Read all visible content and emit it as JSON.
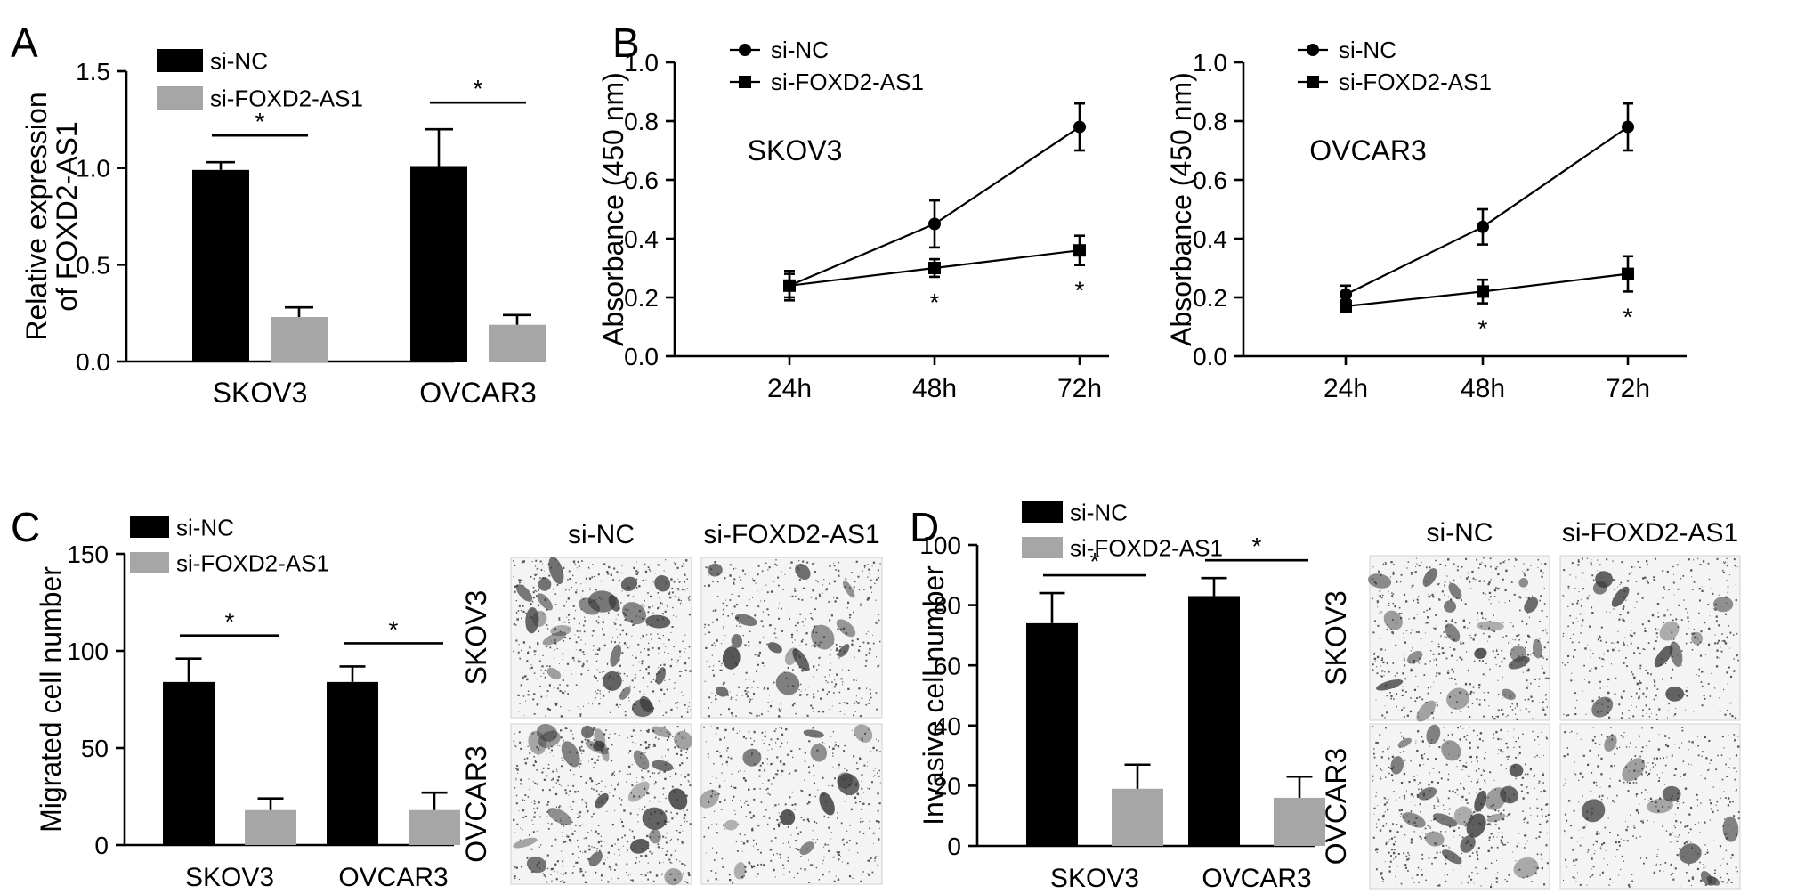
{
  "colors": {
    "si_nc": "#000000",
    "si_foxd2": "#a6a6a6",
    "axis": "#000000"
  },
  "chart_data": [
    {
      "panel": "A",
      "type": "bar",
      "categories": [
        "SKOV3",
        "OVCAR3"
      ],
      "series": [
        {
          "name": "si-NC",
          "values": [
            0.99,
            1.01
          ],
          "errors": [
            0.04,
            0.19
          ]
        },
        {
          "name": "si-FOXD2-AS1",
          "values": [
            0.23,
            0.19
          ],
          "errors": [
            0.05,
            0.05
          ]
        }
      ],
      "ylabel": [
        "Relative expression",
        "of FOXD2-AS1"
      ],
      "ylim": [
        0,
        1.5
      ],
      "yticks": [
        "0.0",
        "0.5",
        "1.0",
        "1.5"
      ],
      "significance": [
        "*",
        "*"
      ],
      "legend": "top-left"
    },
    {
      "panel": "B",
      "type": "line",
      "annotation": "SKOV3",
      "x": [
        "24h",
        "48h",
        "72h"
      ],
      "series": [
        {
          "name": "si-NC",
          "marker": "circle",
          "values": [
            0.24,
            0.45,
            0.78
          ],
          "errors": [
            0.05,
            0.08,
            0.08
          ]
        },
        {
          "name": "si-FOXD2-AS1",
          "marker": "square",
          "values": [
            0.24,
            0.3,
            0.36
          ],
          "errors": [
            0.04,
            0.03,
            0.05
          ]
        }
      ],
      "significance": [
        "",
        "*",
        "*"
      ],
      "ylabel": "Absorbance (450 nm)",
      "ylim": [
        0,
        1.0
      ],
      "yticks": [
        "0.0",
        "0.2",
        "0.4",
        "0.6",
        "0.8",
        "1.0"
      ],
      "legend": "top-left"
    },
    {
      "panel": "",
      "type": "line",
      "annotation": "OVCAR3",
      "x": [
        "24h",
        "48h",
        "72h"
      ],
      "series": [
        {
          "name": "si-NC",
          "marker": "circle",
          "values": [
            0.21,
            0.44,
            0.78
          ],
          "errors": [
            0.03,
            0.06,
            0.08
          ]
        },
        {
          "name": "si-FOXD2-AS1",
          "marker": "square",
          "values": [
            0.17,
            0.22,
            0.28
          ],
          "errors": [
            0.02,
            0.04,
            0.06
          ]
        }
      ],
      "significance": [
        "",
        "*",
        "*"
      ],
      "ylabel": "Absorbance (450 nm)",
      "ylim": [
        0,
        1.0
      ],
      "yticks": [
        "0.0",
        "0.2",
        "0.4",
        "0.6",
        "0.8",
        "1.0"
      ],
      "legend": "top-left"
    },
    {
      "panel": "C",
      "type": "bar",
      "categories": [
        "SKOV3",
        "OVCAR3"
      ],
      "series": [
        {
          "name": "si-NC",
          "values": [
            84,
            84
          ],
          "errors": [
            12,
            8
          ]
        },
        {
          "name": "si-FOXD2-AS1",
          "values": [
            18,
            18
          ],
          "errors": [
            6,
            9
          ]
        }
      ],
      "ylabel": "Migrated cell number",
      "ylim": [
        0,
        150
      ],
      "yticks": [
        "0",
        "50",
        "100",
        "150"
      ],
      "significance": [
        "*",
        "*"
      ],
      "legend": "top-left"
    },
    {
      "panel": "D",
      "type": "bar",
      "categories": [
        "SKOV3",
        "OVCAR3"
      ],
      "series": [
        {
          "name": "si-NC",
          "values": [
            74,
            83
          ],
          "errors": [
            10,
            6
          ]
        },
        {
          "name": "si-FOXD2-AS1",
          "values": [
            19,
            16
          ],
          "errors": [
            8,
            7
          ]
        }
      ],
      "ylabel": "Invasive cell number",
      "ylim": [
        0,
        100
      ],
      "yticks": [
        "0",
        "20",
        "40",
        "60",
        "80",
        "100"
      ],
      "significance": [
        "*",
        "*"
      ],
      "legend": "top-left"
    }
  ],
  "micrographs": [
    {
      "panel": "C",
      "columns": [
        "si-NC",
        "si-FOXD2-AS1"
      ],
      "rows": [
        "SKOV3",
        "OVCAR3"
      ],
      "density": [
        [
          0.55,
          0.35
        ],
        [
          0.6,
          0.3
        ]
      ]
    },
    {
      "panel": "D",
      "columns": [
        "si-NC",
        "si-FOXD2-AS1"
      ],
      "rows": [
        "SKOV3",
        "OVCAR3"
      ],
      "density": [
        [
          0.45,
          0.25
        ],
        [
          0.45,
          0.25
        ]
      ]
    }
  ]
}
